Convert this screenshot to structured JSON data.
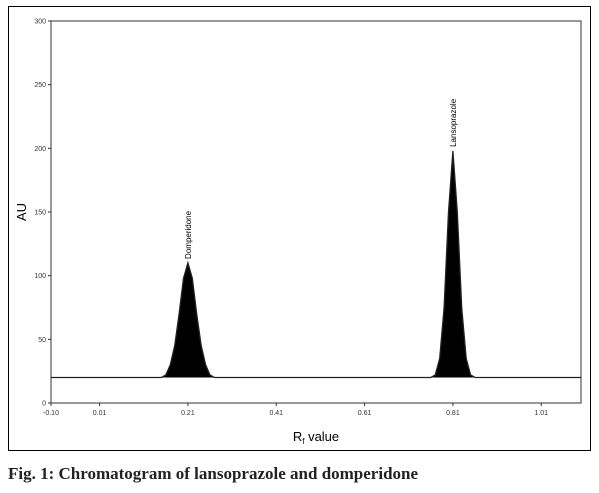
{
  "caption": "Fig. 1: Chromatogram of lansoprazole and domperidone",
  "chart_data": {
    "type": "line",
    "title": "",
    "xlabel_main": "R",
    "xlabel_sub": "f",
    "xlabel_rest": " value",
    "ylabel": "AU",
    "xlim": [
      -0.1,
      1.1
    ],
    "ylim": [
      0,
      300
    ],
    "x_ticks": [
      -0.1,
      0.01,
      0.21,
      0.41,
      0.61,
      0.81,
      1.01
    ],
    "x_tick_labels": [
      "-0.10",
      "0.01",
      "0.21",
      "0.41",
      "0.61",
      "0.81",
      "1.01"
    ],
    "y_ticks": [
      0,
      50,
      100,
      150,
      200,
      250,
      300
    ],
    "y_tick_labels": [
      "0",
      "50",
      "100",
      "150",
      "200",
      "250",
      "300"
    ],
    "baseline": 20,
    "grid": false,
    "series": [
      {
        "x": [
          -0.1,
          0.15,
          0.16,
          0.17,
          0.18,
          0.19,
          0.2,
          0.21,
          0.22,
          0.23,
          0.24,
          0.25,
          0.26,
          0.27,
          0.3,
          0.7,
          0.76,
          0.77,
          0.78,
          0.79,
          0.8,
          0.81,
          0.82,
          0.83,
          0.84,
          0.85,
          0.86,
          0.88,
          1.1
        ],
        "y": [
          20,
          20,
          22,
          30,
          45,
          70,
          98,
          110,
          98,
          70,
          45,
          30,
          22,
          20,
          20,
          20,
          20,
          22,
          35,
          75,
          150,
          198,
          150,
          75,
          35,
          22,
          20,
          20,
          20
        ]
      }
    ],
    "annotations": [
      {
        "text": "Domperidone",
        "x": 0.21,
        "y": 110
      },
      {
        "text": "Lansoprazole",
        "x": 0.81,
        "y": 198
      }
    ]
  }
}
